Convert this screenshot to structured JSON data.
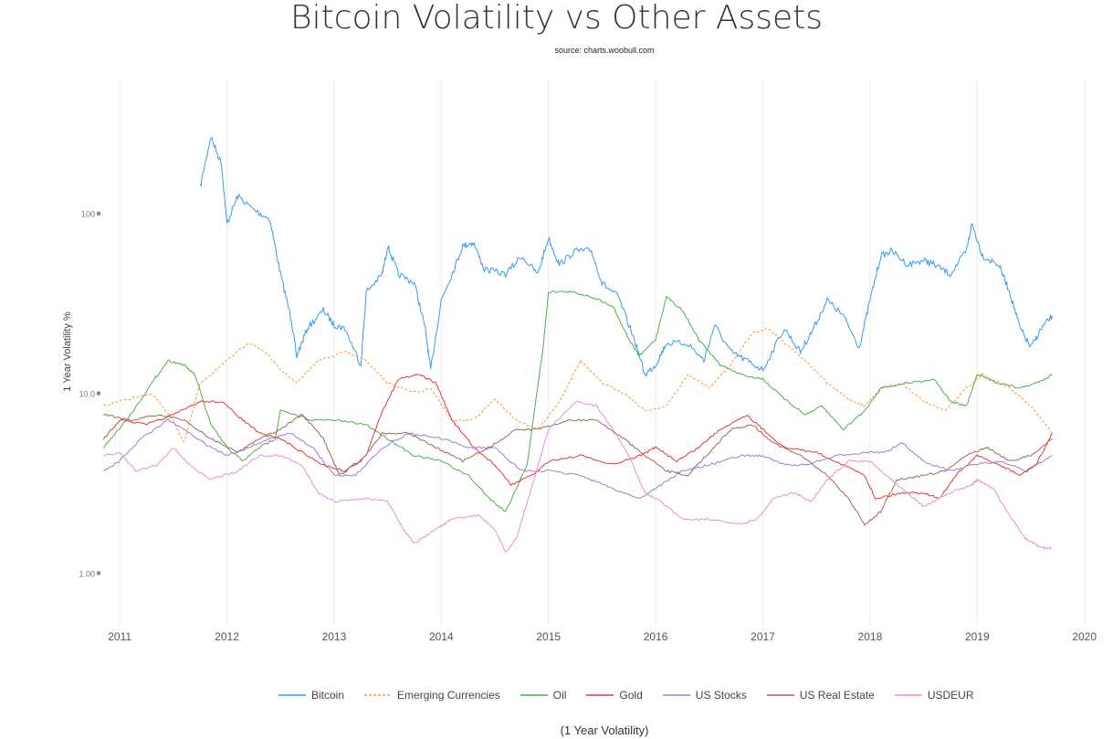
{
  "chart_data": {
    "type": "line",
    "title": "Bitcoin Volatility vs Other Assets",
    "subtitle": "source: charts.woobull.com",
    "ylabel": "1 Year Volatility %",
    "xlabel": "(1 Year Volatility)",
    "yscale": "log",
    "ylim": [
      0.51,
      550
    ],
    "xlim": [
      2010.82,
      2020.19
    ],
    "y_ticks": [
      {
        "v": 1,
        "label": "1.00"
      },
      {
        "v": 10,
        "label": "10.0"
      },
      {
        "v": 100,
        "label": "100"
      }
    ],
    "x_ticks": [
      "2011",
      "2012",
      "2013",
      "2014",
      "2015",
      "2016",
      "2017",
      "2018",
      "2019",
      "2020"
    ],
    "grid": "vertical",
    "legend_position": "bottom",
    "series": [
      {
        "name": "Bitcoin",
        "color": "#3399ff",
        "dash": false,
        "x": [
          2011.75,
          2011.85,
          2011.95,
          2012.0,
          2012.1,
          2012.25,
          2012.4,
          2012.5,
          2012.6,
          2012.65,
          2012.75,
          2012.9,
          2013.0,
          2013.1,
          2013.25,
          2013.3,
          2013.45,
          2013.5,
          2013.6,
          2013.75,
          2013.85,
          2013.9,
          2014.0,
          2014.1,
          2014.2,
          2014.3,
          2014.4,
          2014.6,
          2014.75,
          2014.9,
          2015.0,
          2015.1,
          2015.25,
          2015.4,
          2015.5,
          2015.65,
          2015.8,
          2015.9,
          2016.0,
          2016.1,
          2016.3,
          2016.45,
          2016.55,
          2016.7,
          2016.85,
          2017.0,
          2017.2,
          2017.35,
          2017.45,
          2017.6,
          2017.75,
          2017.9,
          2018.0,
          2018.1,
          2018.2,
          2018.35,
          2018.5,
          2018.6,
          2018.75,
          2018.9,
          2018.95,
          2019.05,
          2019.2,
          2019.3,
          2019.4,
          2019.5,
          2019.6,
          2019.7
        ],
        "y": [
          140,
          267,
          188,
          88,
          125,
          105,
          93,
          46,
          26,
          16,
          23,
          29,
          24,
          23,
          14.4,
          36.7,
          46,
          66,
          46,
          41,
          23,
          13.5,
          33,
          46,
          66,
          69,
          49,
          46,
          58,
          46,
          73,
          52,
          62,
          62,
          41,
          34.5,
          20,
          12.7,
          14.4,
          19,
          19,
          15.2,
          24,
          17,
          15.2,
          13.5,
          23,
          17,
          21.6,
          33,
          27,
          18,
          33,
          58,
          62,
          52,
          55,
          52,
          46,
          62,
          88,
          58,
          52,
          37,
          23,
          18,
          23,
          27
        ]
      },
      {
        "name": "Emerging Currencies",
        "color": "#ff9933",
        "dash": true,
        "x": [
          2010.85,
          2011.0,
          2011.3,
          2011.5,
          2011.6,
          2011.75,
          2012.0,
          2012.2,
          2012.35,
          2012.5,
          2012.65,
          2012.85,
          2013.1,
          2013.3,
          2013.5,
          2013.75,
          2013.9,
          2014.1,
          2014.3,
          2014.5,
          2014.7,
          2014.9,
          2015.1,
          2015.3,
          2015.5,
          2015.7,
          2015.9,
          2016.1,
          2016.3,
          2016.5,
          2016.7,
          2016.9,
          2017.05,
          2017.2,
          2017.4,
          2017.6,
          2017.8,
          2017.95,
          2018.1,
          2018.3,
          2018.5,
          2018.7,
          2018.9,
          2019.05,
          2019.3,
          2019.5,
          2019.7
        ],
        "y": [
          8.5,
          9,
          10,
          7.1,
          5.3,
          11.4,
          15.2,
          19.2,
          17.1,
          13.5,
          11.4,
          15.2,
          17.1,
          15.2,
          11.4,
          10.1,
          10.7,
          7.1,
          7.1,
          9.3,
          7.1,
          6.3,
          9,
          15.2,
          11.4,
          10.1,
          8,
          8.5,
          12.7,
          10.7,
          14.4,
          21.6,
          23,
          19.2,
          15.2,
          11.4,
          9.3,
          8.5,
          10.7,
          11.4,
          9,
          8,
          10.7,
          12.7,
          10.7,
          8.5,
          6
        ]
      },
      {
        "name": "Oil",
        "color": "#4caf50",
        "dash": false,
        "x": [
          2010.85,
          2011.1,
          2011.3,
          2011.45,
          2011.6,
          2011.7,
          2011.85,
          2012.0,
          2012.15,
          2012.3,
          2012.45,
          2012.5,
          2012.8,
          2013.0,
          2013.3,
          2013.5,
          2013.75,
          2014.0,
          2014.25,
          2014.45,
          2014.6,
          2014.8,
          2014.95,
          2015.0,
          2015.2,
          2015.4,
          2015.6,
          2015.75,
          2015.85,
          2016.0,
          2016.1,
          2016.25,
          2016.4,
          2016.6,
          2016.8,
          2017.0,
          2017.2,
          2017.4,
          2017.55,
          2017.75,
          2017.95,
          2018.1,
          2018.35,
          2018.6,
          2018.75,
          2018.9,
          2019.0,
          2019.2,
          2019.4,
          2019.55,
          2019.7
        ],
        "y": [
          5,
          7.6,
          11.4,
          15.2,
          14.4,
          12.7,
          6.7,
          5,
          4.2,
          5,
          5.6,
          8,
          7.1,
          7.1,
          6.7,
          5.6,
          4.5,
          4.2,
          3.5,
          2.6,
          2.2,
          4,
          18,
          36.7,
          36.7,
          34.5,
          30.6,
          20,
          16.1,
          20,
          34.5,
          29,
          20,
          14.4,
          12.7,
          12,
          9.3,
          7.6,
          8.5,
          6.3,
          8,
          10.7,
          11.4,
          12,
          9,
          8.5,
          12.7,
          11.4,
          10.7,
          11.4,
          12.7
        ]
      },
      {
        "name": "Gold",
        "color": "#e53935",
        "dash": false,
        "x": [
          2010.85,
          2011.0,
          2011.25,
          2011.5,
          2011.75,
          2011.95,
          2012.15,
          2012.3,
          2012.5,
          2012.75,
          2012.9,
          2013.1,
          2013.3,
          2013.45,
          2013.6,
          2013.8,
          2013.95,
          2014.1,
          2014.3,
          2014.5,
          2014.65,
          2014.85,
          2015.0,
          2015.3,
          2015.6,
          2015.85,
          2016.0,
          2016.2,
          2016.4,
          2016.6,
          2016.85,
          2017.0,
          2017.2,
          2017.5,
          2017.75,
          2017.95,
          2018.05,
          2018.3,
          2018.5,
          2018.65,
          2018.8,
          2019.0,
          2019.2,
          2019.4,
          2019.55,
          2019.7
        ],
        "y": [
          5.6,
          7.1,
          6.7,
          7.6,
          9,
          9,
          7.1,
          6,
          5.6,
          4.5,
          4,
          3.7,
          4.5,
          8,
          12,
          12.7,
          11.4,
          7.1,
          5,
          4,
          3.1,
          3.5,
          4.2,
          4.5,
          4,
          4.5,
          5,
          4.2,
          5,
          6.3,
          7.6,
          6.3,
          5,
          4.7,
          4,
          3.5,
          2.6,
          2.8,
          2.8,
          2.6,
          3.5,
          4.5,
          4,
          3.5,
          4,
          6
        ]
      },
      {
        "name": "US Stocks",
        "color": "#9c7ed6",
        "dash": false,
        "x": [
          2010.85,
          2011.0,
          2011.2,
          2011.45,
          2011.65,
          2011.85,
          2012.0,
          2012.2,
          2012.4,
          2012.6,
          2012.8,
          2013.0,
          2013.2,
          2013.45,
          2013.7,
          2014.0,
          2014.25,
          2014.5,
          2014.75,
          2015.0,
          2015.3,
          2015.6,
          2015.85,
          2016.05,
          2016.25,
          2016.5,
          2016.8,
          2017.0,
          2017.2,
          2017.4,
          2017.7,
          2017.95,
          2018.15,
          2018.3,
          2018.5,
          2018.75,
          2018.95,
          2019.2,
          2019.45,
          2019.7
        ],
        "y": [
          3.7,
          4.2,
          5.6,
          7.1,
          6,
          5,
          4.5,
          5,
          5.6,
          6,
          5,
          3.5,
          3.5,
          5,
          6,
          5.6,
          5,
          5,
          3.7,
          3.7,
          3.5,
          2.95,
          2.6,
          3.1,
          3.7,
          4,
          4.5,
          4.5,
          4,
          4,
          4.5,
          4.7,
          4.7,
          5.3,
          4.2,
          3.7,
          4,
          4.2,
          3.7,
          4.5
        ]
      },
      {
        "name": "US Real Estate",
        "color": "#a0665a",
        "dash": false,
        "x": [
          2010.85,
          2011.1,
          2011.35,
          2011.6,
          2011.85,
          2012.1,
          2012.3,
          2012.5,
          2012.7,
          2012.9,
          2013.05,
          2013.25,
          2013.45,
          2013.7,
          2013.95,
          2014.2,
          2014.45,
          2014.7,
          2014.9,
          2015.2,
          2015.45,
          2015.7,
          2015.9,
          2016.1,
          2016.3,
          2016.5,
          2016.7,
          2016.9,
          2017.1,
          2017.35,
          2017.6,
          2017.8,
          2017.95,
          2018.1,
          2018.25,
          2018.5,
          2018.7,
          2018.95,
          2019.1,
          2019.3,
          2019.5,
          2019.7
        ],
        "y": [
          7.6,
          7.1,
          7.6,
          7.1,
          5.6,
          4.7,
          5.6,
          6.3,
          7.6,
          5.6,
          3.5,
          4.2,
          6,
          6,
          5,
          4.2,
          5,
          6.3,
          6.3,
          7.1,
          7.1,
          5.6,
          4.5,
          3.7,
          3.5,
          4.7,
          6.3,
          6.7,
          5.3,
          4.5,
          3.5,
          2.6,
          1.86,
          2.2,
          3.3,
          3.5,
          3.7,
          4.7,
          5,
          4.2,
          4.5,
          5.6
        ]
      },
      {
        "name": "USDEUR",
        "color": "#e88fcf",
        "dash": false,
        "x": [
          2010.85,
          2011.0,
          2011.15,
          2011.35,
          2011.5,
          2011.65,
          2011.85,
          2012.1,
          2012.3,
          2012.5,
          2012.7,
          2012.85,
          2013.0,
          2013.25,
          2013.5,
          2013.65,
          2013.75,
          2013.95,
          2014.1,
          2014.35,
          2014.5,
          2014.6,
          2014.7,
          2014.85,
          2015.0,
          2015.25,
          2015.45,
          2015.6,
          2015.75,
          2015.9,
          2016.05,
          2016.25,
          2016.5,
          2016.8,
          2016.95,
          2017.1,
          2017.3,
          2017.45,
          2017.6,
          2017.8,
          2018.0,
          2018.15,
          2018.35,
          2018.5,
          2018.75,
          2018.95,
          2019.0,
          2019.15,
          2019.3,
          2019.45,
          2019.6,
          2019.7
        ],
        "y": [
          4.5,
          4.7,
          3.7,
          4,
          5,
          4,
          3.3,
          3.7,
          4.5,
          4.5,
          4,
          2.8,
          2.5,
          2.6,
          2.5,
          1.75,
          1.47,
          1.75,
          2,
          2.1,
          1.75,
          1.3,
          1.56,
          3.1,
          6.3,
          9,
          8.5,
          6.3,
          4.5,
          2.8,
          2.5,
          2,
          2,
          1.86,
          2,
          2.6,
          2.8,
          2.5,
          3.3,
          4.2,
          4.2,
          3.5,
          2.8,
          2.35,
          2.8,
          3.1,
          3.3,
          2.95,
          2.1,
          1.56,
          1.38,
          1.38
        ]
      }
    ]
  }
}
